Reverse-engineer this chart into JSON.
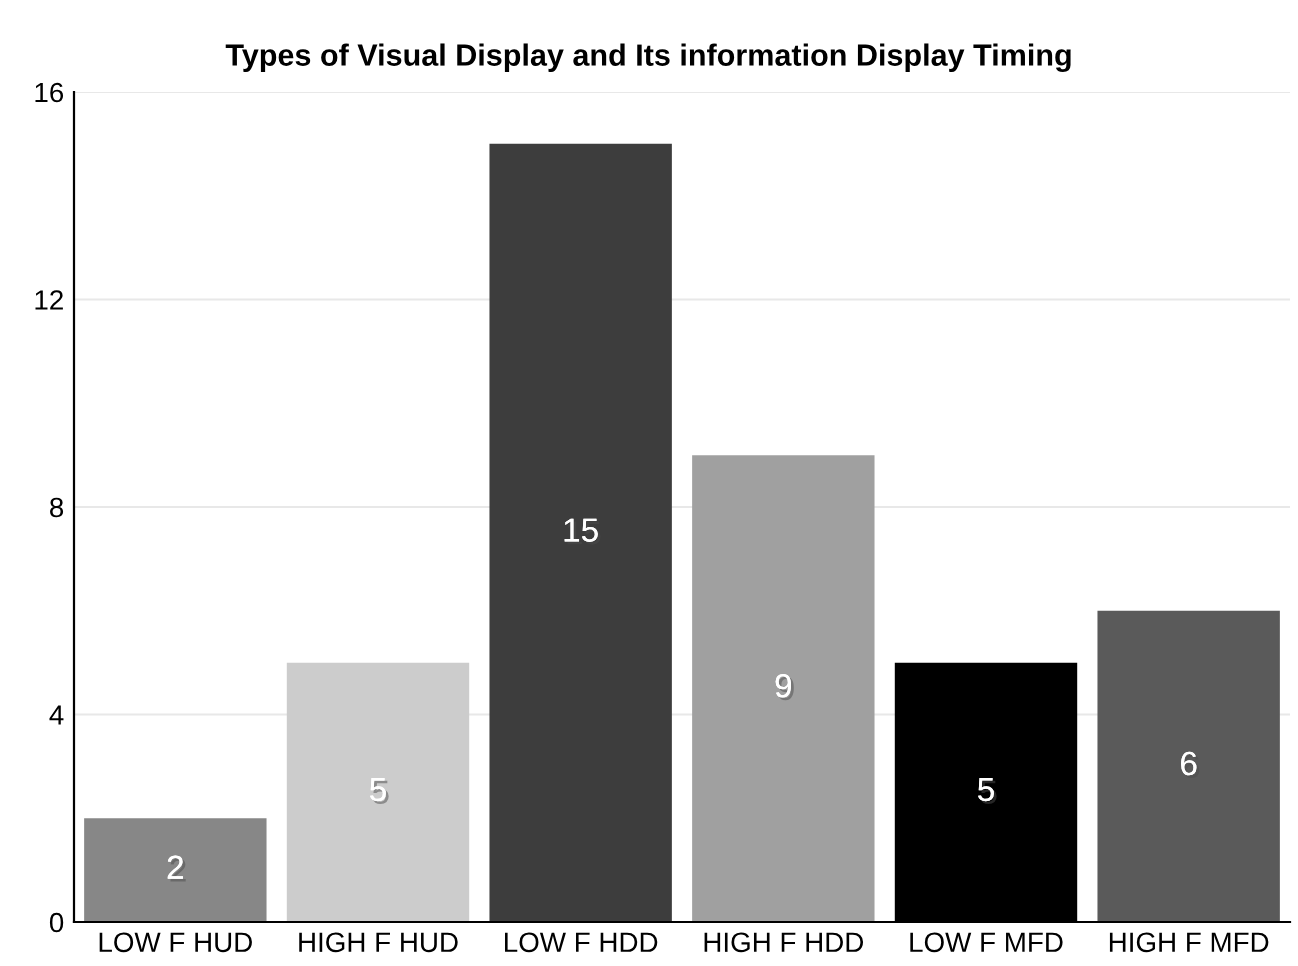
{
  "chart_data": {
    "type": "bar",
    "title": "Types of Visual Display and Its information Display Timing",
    "categories": [
      "LOW F HUD",
      "HIGH F HUD",
      "LOW F HDD",
      "HIGH F HDD",
      "LOW F MFD",
      "HIGH F MFD"
    ],
    "values": [
      2,
      5,
      15,
      9,
      5,
      6
    ],
    "colors": [
      "#878787",
      "#cccccc",
      "#3d3d3d",
      "#a0a0a0",
      "#000000",
      "#5a5a5a"
    ],
    "ylim": [
      0,
      16
    ],
    "yticks": [
      0,
      4,
      8,
      12,
      16
    ],
    "grid": "y",
    "data_labels": true
  }
}
